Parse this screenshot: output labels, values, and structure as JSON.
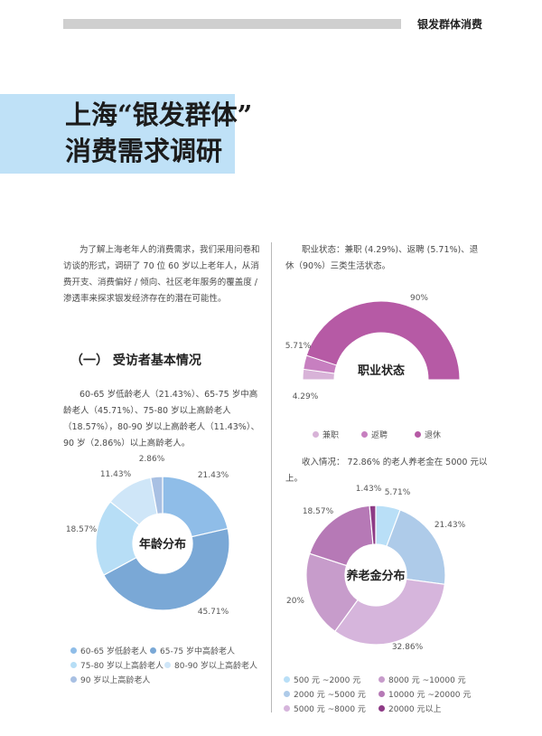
{
  "header": {
    "section_label": "银发群体消费"
  },
  "title": {
    "line1": "上海“银发群体”",
    "line2": "消费需求调研"
  },
  "intro": "为了解上海老年人的消费需求，我们采用问卷和访谈的形式，调研了 70 位 60 岁以上老年人，从消费开支、消费偏好 / 倾向、社区老年服务的覆盖度 / 渗透率来探求银发经济存在的潜在可能性。",
  "section1": {
    "heading": "（一） 受访者基本情况",
    "text": "60-65 岁低龄老人（21.43%）、65-75 岁中高龄老人（45.71%）、75-80 岁以上高龄老人（18.57%），80-90 岁以上高龄老人（11.43%）、90 岁（2.86%）以上高龄老人。"
  },
  "employment_text": "职业状态：兼职 (4.29%)、返聘 (5.71%)、退休（90%）三类生活状态。",
  "pension_text": "收入情况： 72.86% 的老人养老金在 5000 元以上。",
  "colors": {
    "title_band": "#bfe1f7",
    "age": [
      "#8fbde8",
      "#7aa8d6",
      "#b7def6",
      "#cfe6f8",
      "#a8c0e3"
    ],
    "job": [
      "#d8b3d8",
      "#c77fc0",
      "#b65aa5"
    ],
    "pension": [
      "#b9dff7",
      "#aecbe9",
      "#d6b5dc",
      "#c79ccb",
      "#b679b6",
      "#8e3b86"
    ]
  },
  "chart_data": [
    {
      "type": "pie",
      "title": "年龄分布",
      "categories": [
        "60-65 岁低龄老人",
        "65-75 岁中高龄老人",
        "75-80 岁以上高龄老人",
        "80-90 岁以上高龄老人",
        "90 岁以上高龄老人"
      ],
      "values": [
        21.43,
        45.71,
        18.57,
        11.43,
        2.86
      ],
      "labels": [
        "21.43%",
        "45.71%",
        "18.57%",
        "11.43%",
        "2.86%"
      ],
      "legend_position": "bottom"
    },
    {
      "type": "pie",
      "title": "职业状态",
      "categories": [
        "兼职",
        "返聘",
        "退休"
      ],
      "values": [
        4.29,
        5.71,
        90
      ],
      "labels": [
        "4.29%",
        "5.71%",
        "90%"
      ],
      "legend_position": "bottom"
    },
    {
      "type": "pie",
      "title": "养老金分布",
      "categories": [
        "500 元 ~2000 元",
        "2000 元 ~5000 元",
        "5000 元 ~8000 元",
        "8000 元 ~10000 元",
        "10000 元 ~20000 元",
        "20000 元以上"
      ],
      "values": [
        5.71,
        21.43,
        32.86,
        20,
        18.57,
        1.43
      ],
      "labels": [
        "5.71%",
        "21.43%",
        "32.86%",
        "20%",
        "18.57%",
        "1.43%"
      ],
      "legend_position": "bottom"
    }
  ]
}
